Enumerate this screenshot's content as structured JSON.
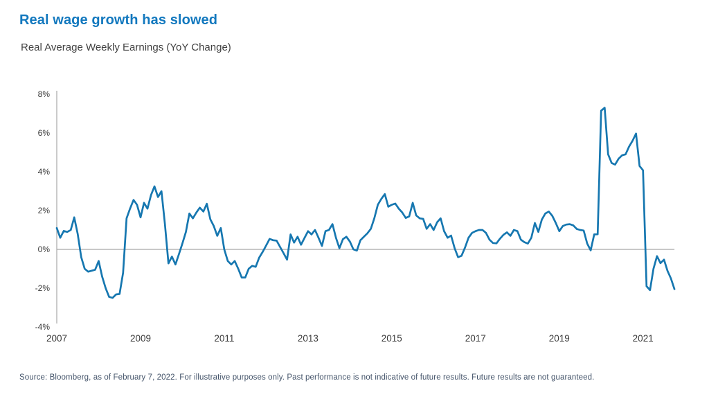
{
  "header": {
    "title": "Real wage growth has slowed",
    "subtitle": "Real Average Weekly Earnings (YoY Change)"
  },
  "footer": {
    "source": "Source: Bloomberg, as of February 7, 2022. For illustrative purposes only. Past performance is not indicative of future results. Future results are not guaranteed."
  },
  "colors": {
    "title": "#1278be",
    "subtitle_text": "#414141",
    "line": "#1677b0",
    "axis_text": "#3a3a3a",
    "axis_line": "#a6a6a6",
    "source_text": "#44546a"
  },
  "chart_data": {
    "type": "line",
    "title": "Real Average Weekly Earnings (YoY Change)",
    "frequency": "monthly",
    "x_start": "2007-01",
    "x_end": "2021-10",
    "ylim": [
      -4,
      8
    ],
    "grid": false,
    "legend": "none",
    "y_ticks": [
      "8%",
      "6%",
      "4%",
      "2%",
      "0%",
      "-2%",
      "-4%"
    ],
    "x_ticks": [
      "2007",
      "2009",
      "2011",
      "2013",
      "2015",
      "2017",
      "2019",
      "2021"
    ],
    "unit": "percent",
    "values": [
      1.1,
      0.6,
      0.95,
      0.9,
      1.0,
      1.65,
      0.8,
      -0.4,
      -1.0,
      -1.15,
      -1.1,
      -1.05,
      -0.6,
      -1.4,
      -2.0,
      -2.45,
      -2.5,
      -2.32,
      -2.3,
      -1.2,
      1.6,
      2.1,
      2.55,
      2.3,
      1.65,
      2.4,
      2.1,
      2.8,
      3.25,
      2.7,
      3.0,
      1.3,
      -0.72,
      -0.37,
      -0.78,
      -0.25,
      0.3,
      0.9,
      1.85,
      1.6,
      1.9,
      2.15,
      1.95,
      2.35,
      1.55,
      1.2,
      0.7,
      1.1,
      0.0,
      -0.6,
      -0.78,
      -0.6,
      -1.0,
      -1.45,
      -1.45,
      -1.0,
      -0.85,
      -0.9,
      -0.43,
      -0.13,
      0.2,
      0.54,
      0.47,
      0.45,
      0.12,
      -0.2,
      -0.53,
      0.77,
      0.35,
      0.65,
      0.24,
      0.59,
      0.94,
      0.77,
      1.0,
      0.6,
      0.18,
      0.94,
      1.0,
      1.3,
      0.6,
      0.06,
      0.53,
      0.65,
      0.4,
      0.0,
      -0.06,
      0.47,
      0.65,
      0.83,
      1.06,
      1.6,
      2.3,
      2.6,
      2.85,
      2.2,
      2.3,
      2.36,
      2.1,
      1.9,
      1.62,
      1.7,
      2.4,
      1.75,
      1.6,
      1.57,
      1.06,
      1.3,
      1.0,
      1.4,
      1.6,
      0.94,
      0.6,
      0.71,
      0.06,
      -0.4,
      -0.33,
      0.1,
      0.6,
      0.85,
      0.94,
      1.0,
      1.0,
      0.85,
      0.5,
      0.33,
      0.31,
      0.55,
      0.75,
      0.88,
      0.7,
      1.0,
      0.94,
      0.5,
      0.37,
      0.3,
      0.6,
      1.36,
      0.9,
      1.54,
      1.85,
      1.95,
      1.73,
      1.36,
      0.94,
      1.2,
      1.28,
      1.3,
      1.24,
      1.05,
      1.0,
      0.97,
      0.3,
      -0.05,
      0.77,
      0.78,
      7.15,
      7.3,
      4.9,
      4.45,
      4.37,
      4.67,
      4.85,
      4.9,
      5.3,
      5.6,
      5.97,
      4.3,
      4.08,
      -1.9,
      -2.1,
      -1.0,
      -0.35,
      -0.71,
      -0.53,
      -1.1,
      -1.5,
      -2.05
    ]
  }
}
